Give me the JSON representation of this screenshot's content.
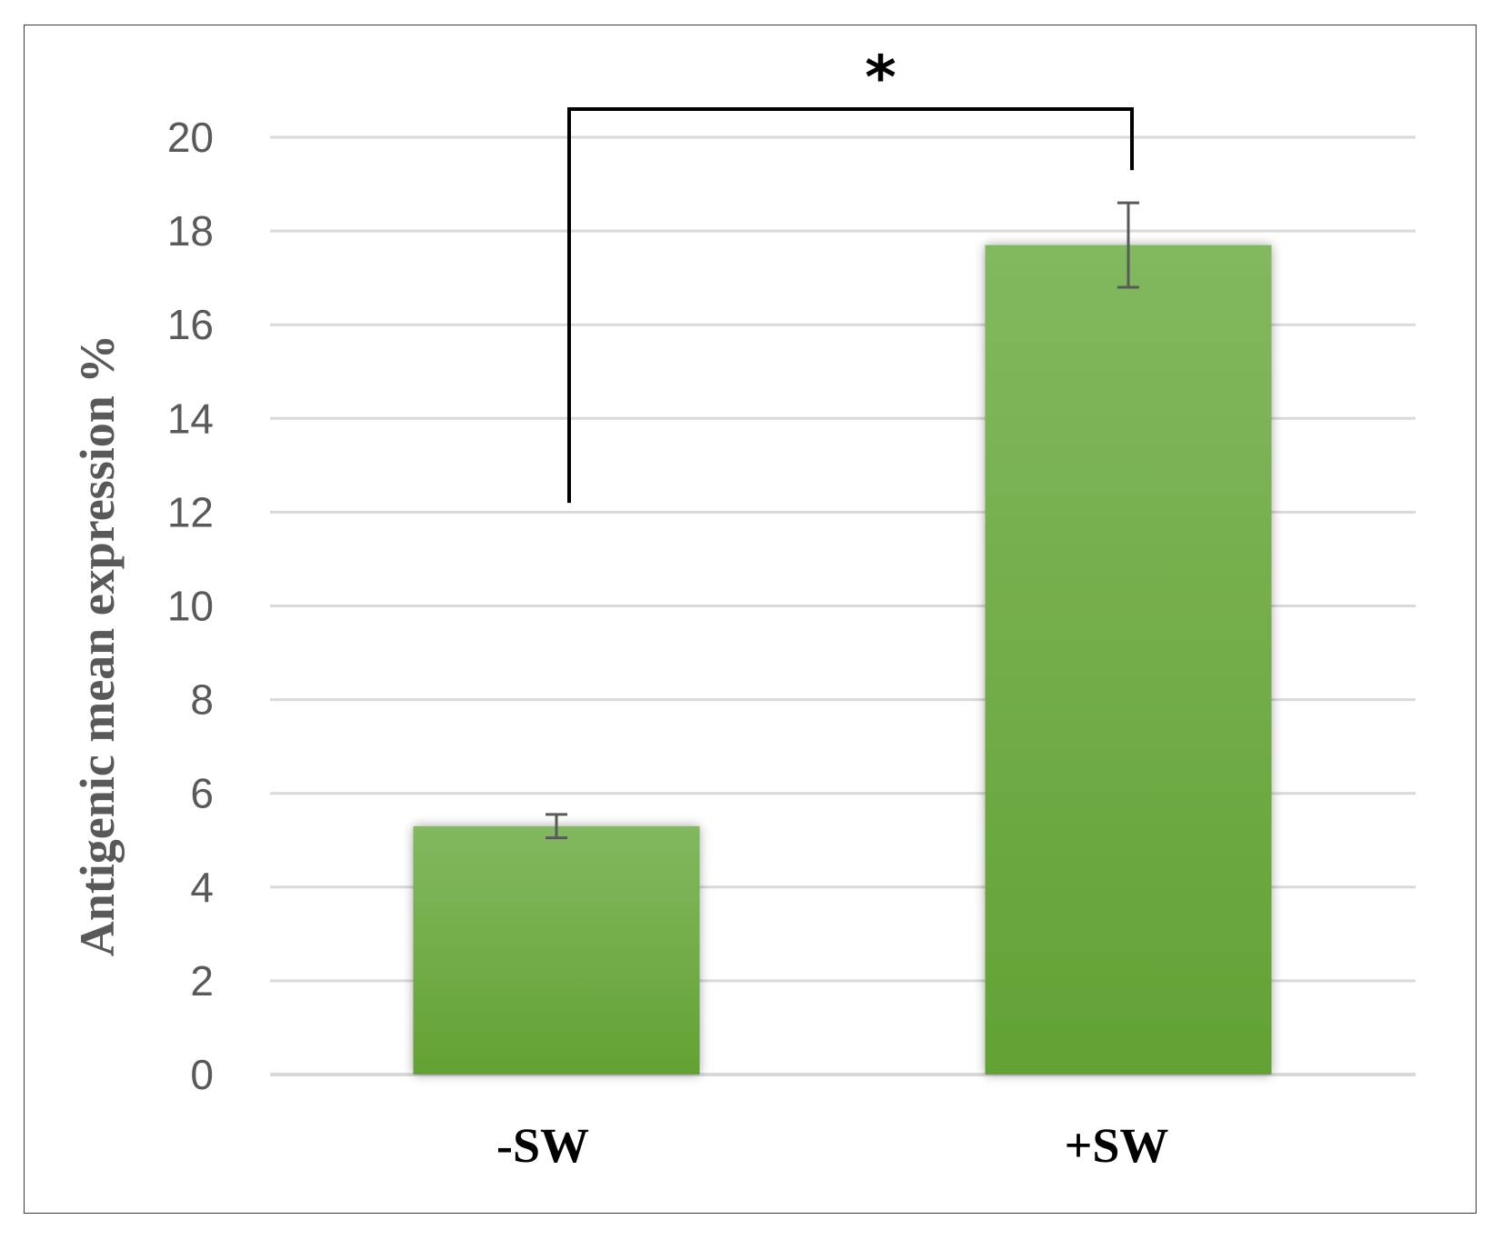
{
  "chart_data": {
    "type": "bar",
    "categories": [
      "-SW",
      "+SW"
    ],
    "values": [
      5.3,
      17.7
    ],
    "error": [
      0.25,
      0.9
    ],
    "title": "",
    "xlabel": "",
    "ylabel": "Antigenic mean expression %",
    "ylim": [
      0,
      20
    ],
    "yticks": [
      "0",
      "2",
      "4",
      "6",
      "8",
      "10",
      "12",
      "14",
      "16",
      "18",
      "20"
    ],
    "grid": true,
    "legend": "none",
    "bar_color": "#70ad47",
    "bar_color_top": "#82b85e",
    "bar_color_bottom": "#62a234",
    "significance": {
      "label": "*",
      "between": [
        "-SW",
        "+SW"
      ]
    }
  }
}
